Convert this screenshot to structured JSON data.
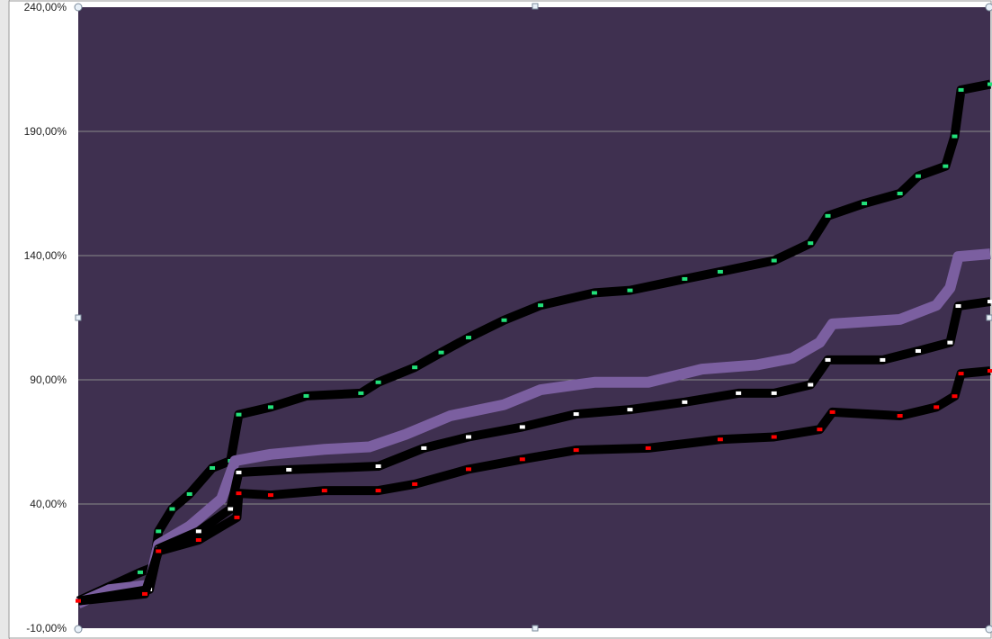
{
  "chart_data": {
    "type": "line",
    "title": "",
    "xlabel": "",
    "ylabel": "",
    "ylim": [
      -10,
      240
    ],
    "xlim": [
      0,
      100
    ],
    "x_tick_labels_shown": false,
    "y_ticks": [
      -10,
      40,
      90,
      140,
      190,
      240
    ],
    "y_tick_labels": [
      "-10,00%",
      "40,00%",
      "90,00%",
      "140,00%",
      "190,00%",
      "240,00%"
    ],
    "grid": true,
    "legend": "none",
    "plot_background": "#3f3050",
    "gridline_color": "#8a8a8a",
    "series": [
      {
        "line_color": "#000000",
        "marker_color": "#22e07a",
        "points": [
          [
            0,
            1
          ],
          [
            6.8,
            12.5
          ],
          [
            8.3,
            14.6
          ],
          [
            8.8,
            29
          ],
          [
            10.3,
            38
          ],
          [
            12.2,
            44
          ],
          [
            14.7,
            54.5
          ],
          [
            16.7,
            57.4
          ],
          [
            17.6,
            76
          ],
          [
            21.1,
            79
          ],
          [
            25,
            83.5
          ],
          [
            31,
            84.6
          ],
          [
            32.9,
            89
          ],
          [
            36.9,
            95
          ],
          [
            39.8,
            101
          ],
          [
            42.8,
            107
          ],
          [
            46.7,
            114
          ],
          [
            50.7,
            120
          ],
          [
            56.6,
            125
          ],
          [
            60.5,
            126
          ],
          [
            66.5,
            130.6
          ],
          [
            70.4,
            133.5
          ],
          [
            76.3,
            138
          ],
          [
            80.3,
            145
          ],
          [
            82.2,
            156
          ],
          [
            86.2,
            161
          ],
          [
            90.1,
            165
          ],
          [
            92.1,
            172
          ],
          [
            95.1,
            176
          ],
          [
            96.1,
            188
          ],
          [
            96.8,
            206.7
          ],
          [
            100,
            209
          ]
        ]
      },
      {
        "line_color": "#7b5fa0",
        "marker_color": "#7b5fa0",
        "points": [
          [
            0,
            0
          ],
          [
            3.4,
            5.5
          ],
          [
            7.8,
            7.4
          ],
          [
            8.8,
            23.7
          ],
          [
            12.2,
            31
          ],
          [
            15.7,
            42
          ],
          [
            17.2,
            57.4
          ],
          [
            21.1,
            60
          ],
          [
            27,
            62
          ],
          [
            31.9,
            63
          ],
          [
            35.9,
            68
          ],
          [
            40.8,
            75.5
          ],
          [
            46.7,
            80
          ],
          [
            50.7,
            86
          ],
          [
            56.6,
            89
          ],
          [
            62.5,
            89
          ],
          [
            68.4,
            94.3
          ],
          [
            74.4,
            96
          ],
          [
            78.3,
            98.7
          ],
          [
            81.3,
            105
          ],
          [
            82.7,
            112.5
          ],
          [
            90.1,
            114.3
          ],
          [
            94.1,
            120
          ],
          [
            95.6,
            127
          ],
          [
            96.5,
            139.6
          ],
          [
            100,
            140.7
          ]
        ]
      },
      {
        "line_color": "#000000",
        "marker_color": "#ffffff",
        "points": [
          [
            0,
            1
          ],
          [
            7.8,
            5.6
          ],
          [
            8.8,
            22
          ],
          [
            13.2,
            29
          ],
          [
            16.7,
            38
          ],
          [
            17.6,
            52.7
          ],
          [
            23.1,
            53.8
          ],
          [
            32.9,
            55.2
          ],
          [
            37.9,
            62.5
          ],
          [
            42.8,
            67
          ],
          [
            48.7,
            71
          ],
          [
            54.6,
            76.2
          ],
          [
            60.5,
            78
          ],
          [
            66.5,
            81
          ],
          [
            72.4,
            84.6
          ],
          [
            76.3,
            84.6
          ],
          [
            80.3,
            88
          ],
          [
            82.2,
            98
          ],
          [
            88.2,
            98
          ],
          [
            92.1,
            101.6
          ],
          [
            95.6,
            105
          ],
          [
            96.5,
            119.7
          ],
          [
            100,
            121.5
          ]
        ]
      },
      {
        "line_color": "#000000",
        "marker_color": "#ff0000",
        "points": [
          [
            0,
            1
          ],
          [
            7.3,
            3.8
          ],
          [
            8.8,
            21
          ],
          [
            13.2,
            25.5
          ],
          [
            17.4,
            34.6
          ],
          [
            17.6,
            44.3
          ],
          [
            21.1,
            43.6
          ],
          [
            27,
            45.4
          ],
          [
            32.9,
            45.4
          ],
          [
            36.9,
            48
          ],
          [
            42.8,
            54
          ],
          [
            48.7,
            58
          ],
          [
            54.6,
            61.7
          ],
          [
            62.5,
            62.5
          ],
          [
            70.4,
            66
          ],
          [
            76.3,
            67
          ],
          [
            81.3,
            70
          ],
          [
            82.7,
            77
          ],
          [
            90.1,
            75.5
          ],
          [
            94.1,
            79
          ],
          [
            96.1,
            83.4
          ],
          [
            96.8,
            92.5
          ],
          [
            100,
            93.6
          ]
        ]
      }
    ]
  }
}
